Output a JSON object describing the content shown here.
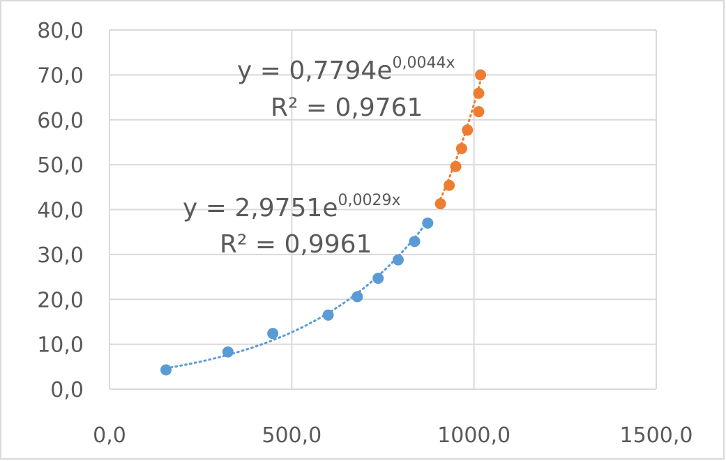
{
  "chart_data": {
    "type": "scatter",
    "title": "",
    "xlabel": "",
    "ylabel": "",
    "xlim": [
      0,
      1500
    ],
    "ylim": [
      0,
      80
    ],
    "x_ticks": [
      0,
      500,
      1000,
      1500
    ],
    "y_ticks": [
      0,
      10,
      20,
      30,
      40,
      50,
      60,
      70,
      80
    ],
    "x_tick_labels": [
      "0,0",
      "500,0",
      "1000,0",
      "1500,0"
    ],
    "y_tick_labels": [
      "0,0",
      "10,0",
      "20,0",
      "30,0",
      "40,0",
      "50,0",
      "60,0",
      "70,0",
      "80,0"
    ],
    "grid": true,
    "legend": "none",
    "series": [
      {
        "color": "#5b9bd5",
        "x": [
          155,
          325,
          448,
          600,
          680,
          737,
          792,
          837,
          873
        ],
        "y": [
          4.3,
          8.3,
          12.4,
          16.5,
          20.6,
          24.7,
          28.8,
          32.9,
          37.0
        ],
        "trendline": {
          "type": "exponential",
          "a": 2.9751,
          "b": 0.0029,
          "x_range": [
            155,
            873
          ],
          "equation_base": "y = 2,9751e",
          "equation_exp": "0,0029x",
          "r2_label": "R² = 0,9961"
        }
      },
      {
        "color": "#ed7d31",
        "x": [
          908,
          932,
          950,
          966,
          982,
          1013,
          1013,
          1018
        ],
        "y": [
          41.3,
          45.4,
          49.6,
          53.6,
          57.7,
          61.8,
          65.9,
          70.0
        ],
        "trendline": {
          "type": "exponential",
          "a": 0.7794,
          "b": 0.0044,
          "x_range": [
            908,
            1018
          ],
          "equation_base": "y = 0,7794e",
          "equation_exp": "0,0044x",
          "r2_label": "R² = 0,9761"
        }
      }
    ]
  }
}
